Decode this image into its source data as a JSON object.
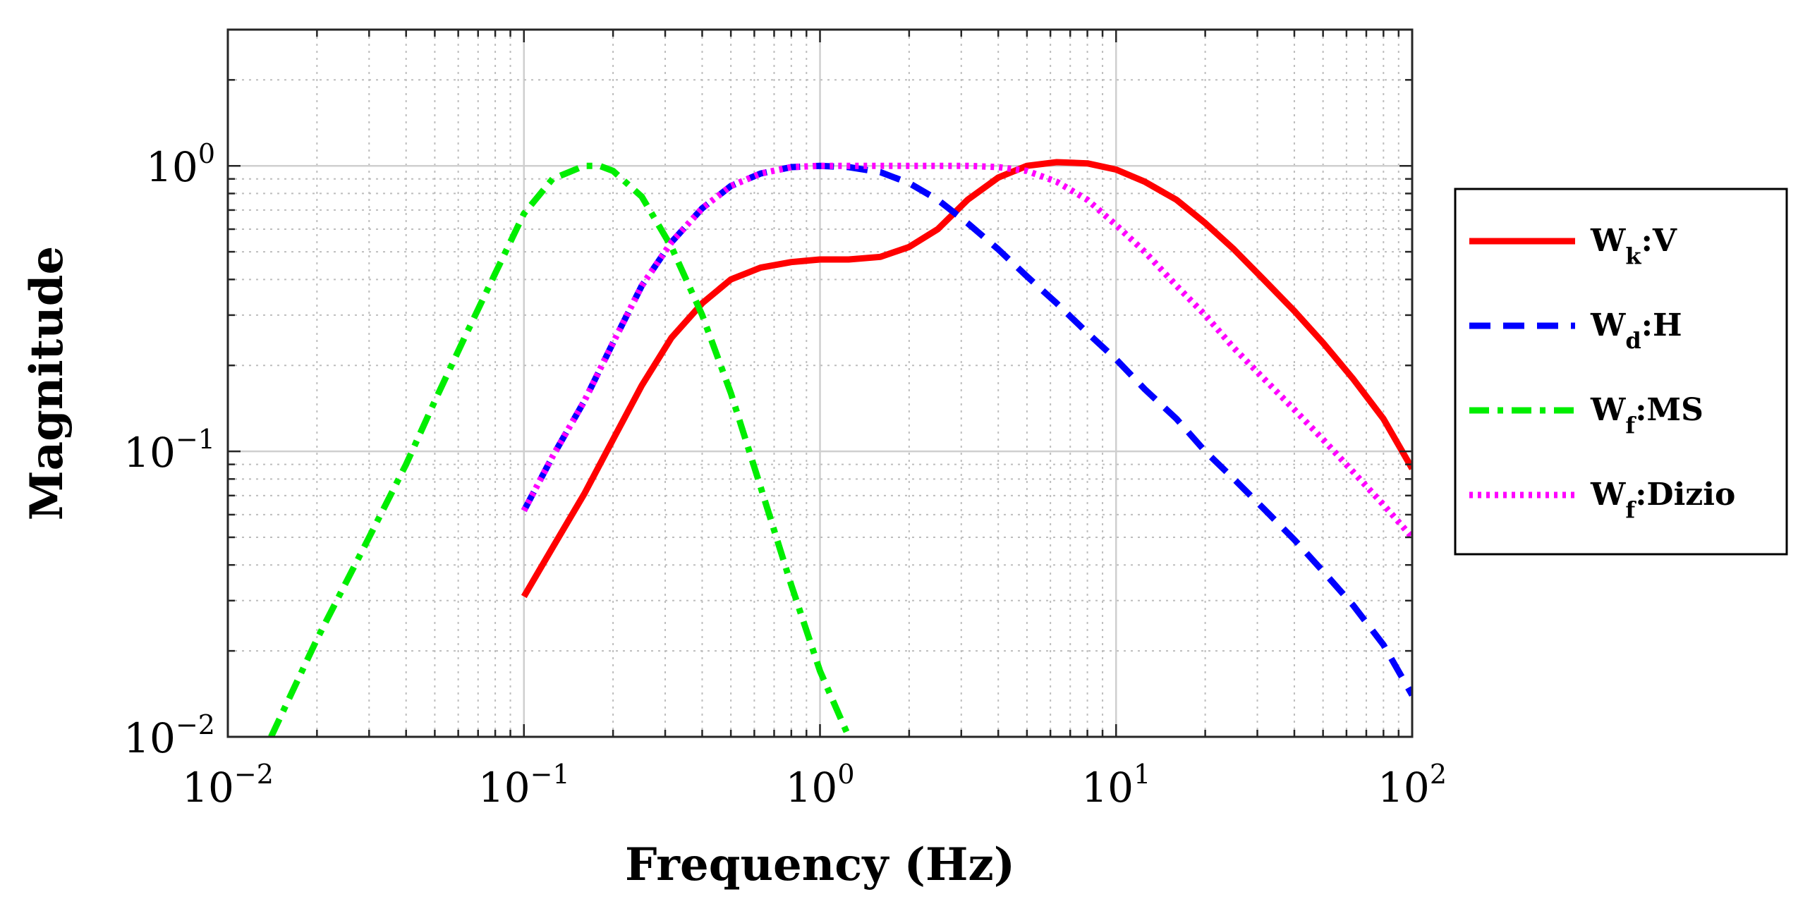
{
  "chart_data": {
    "type": "line",
    "xscale": "log",
    "yscale": "log",
    "xlabel": "Frequency (Hz)",
    "ylabel": "Magnitude",
    "xlim": [
      0.01,
      100
    ],
    "ylim": [
      0.01,
      3
    ],
    "grid": true,
    "legend_position": "outside-right",
    "x_ticks": [
      {
        "value": 0.01,
        "base": "10",
        "exp": "−2"
      },
      {
        "value": 0.1,
        "base": "10",
        "exp": "−1"
      },
      {
        "value": 1,
        "base": "10",
        "exp": "0"
      },
      {
        "value": 10,
        "base": "10",
        "exp": "1"
      },
      {
        "value": 100,
        "base": "10",
        "exp": "2"
      }
    ],
    "y_ticks": [
      {
        "value": 0.01,
        "base": "10",
        "exp": "−2"
      },
      {
        "value": 0.1,
        "base": "10",
        "exp": "−1"
      },
      {
        "value": 1,
        "base": "10",
        "exp": "0"
      }
    ],
    "series": [
      {
        "name": "W_k:V",
        "label_main": "W",
        "label_sub": "k",
        "label_rest": ":V",
        "color": "#ff0000",
        "style": "solid",
        "x": [
          0.1,
          0.125,
          0.16,
          0.2,
          0.25,
          0.315,
          0.4,
          0.5,
          0.63,
          0.8,
          1.0,
          1.25,
          1.6,
          2.0,
          2.5,
          3.15,
          4.0,
          5.0,
          6.3,
          8.0,
          10,
          12.5,
          16,
          20,
          25,
          31.5,
          40,
          50,
          63,
          80,
          100
        ],
        "y": [
          0.031,
          0.046,
          0.071,
          0.11,
          0.17,
          0.25,
          0.33,
          0.4,
          0.44,
          0.46,
          0.47,
          0.47,
          0.48,
          0.52,
          0.6,
          0.76,
          0.91,
          1.0,
          1.03,
          1.02,
          0.97,
          0.88,
          0.76,
          0.63,
          0.51,
          0.4,
          0.31,
          0.24,
          0.18,
          0.13,
          0.087
        ]
      },
      {
        "name": "W_d:H",
        "label_main": "W",
        "label_sub": "d",
        "label_rest": ":H",
        "color": "#0000ff",
        "style": "dashed",
        "x": [
          0.1,
          0.125,
          0.16,
          0.2,
          0.25,
          0.315,
          0.4,
          0.5,
          0.63,
          0.8,
          1.0,
          1.25,
          1.6,
          2.0,
          2.5,
          3.15,
          4.0,
          5.0,
          6.3,
          8.0,
          10,
          12.5,
          16,
          20,
          25,
          31.5,
          40,
          50,
          63,
          80,
          100
        ],
        "y": [
          0.062,
          0.096,
          0.15,
          0.24,
          0.38,
          0.54,
          0.71,
          0.85,
          0.94,
          0.99,
          1.0,
          0.99,
          0.95,
          0.87,
          0.76,
          0.63,
          0.51,
          0.41,
          0.33,
          0.26,
          0.21,
          0.165,
          0.13,
          0.1,
          0.08,
          0.063,
          0.049,
          0.038,
          0.029,
          0.021,
          0.014
        ]
      },
      {
        "name": "W_f:MS",
        "label_main": "W",
        "label_sub": "f",
        "label_rest": ":MS",
        "color": "#00ee00",
        "style": "dashdot",
        "x": [
          0.014,
          0.02,
          0.03,
          0.04,
          0.05,
          0.063,
          0.08,
          0.1,
          0.125,
          0.16,
          0.18,
          0.2,
          0.25,
          0.315,
          0.4,
          0.5,
          0.63,
          0.8,
          1.0,
          1.25
        ],
        "y": [
          0.01,
          0.022,
          0.05,
          0.09,
          0.15,
          0.25,
          0.42,
          0.68,
          0.9,
          1.0,
          1.0,
          0.96,
          0.78,
          0.52,
          0.3,
          0.16,
          0.075,
          0.034,
          0.017,
          0.01
        ]
      },
      {
        "name": "W_f:Dizio",
        "label_main": "W",
        "label_sub": "f",
        "label_rest": ":Dizio",
        "color": "#ff00ff",
        "style": "dotted",
        "x": [
          0.1,
          0.125,
          0.16,
          0.2,
          0.25,
          0.315,
          0.4,
          0.5,
          0.63,
          0.8,
          1.0,
          1.25,
          1.6,
          2.0,
          2.5,
          3.15,
          4.0,
          5.0,
          6.3,
          8.0,
          10,
          12.5,
          16,
          20,
          25,
          31.5,
          40,
          50,
          63,
          80,
          100
        ],
        "y": [
          0.062,
          0.096,
          0.15,
          0.24,
          0.38,
          0.54,
          0.71,
          0.85,
          0.94,
          0.99,
          1.0,
          1.0,
          1.0,
          1.0,
          1.0,
          1.0,
          0.99,
          0.96,
          0.88,
          0.76,
          0.62,
          0.5,
          0.38,
          0.3,
          0.23,
          0.18,
          0.14,
          0.11,
          0.085,
          0.065,
          0.05
        ]
      }
    ]
  }
}
